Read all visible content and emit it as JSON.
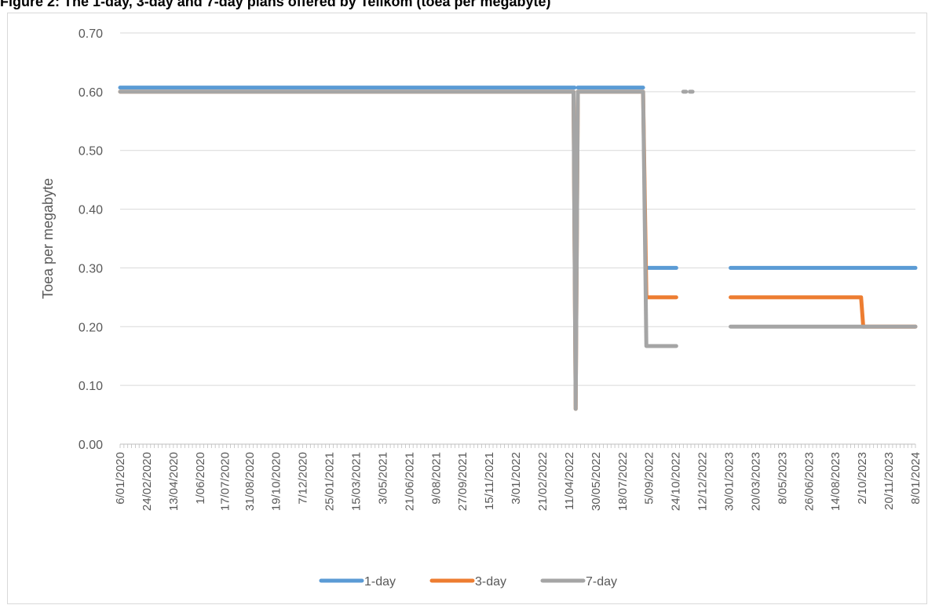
{
  "figure": {
    "title": "Figure 2: The 1-day, 3-day and 7-day plans offered by Telikom (toea per megabyte)"
  },
  "chart_data": {
    "type": "line",
    "title": "Figure 2: The 1-day, 3-day and 7-day plans offered by Telikom (toea per megabyte)",
    "xlabel": "",
    "ylabel": "Toea per megabyte",
    "ylim": [
      0,
      0.7
    ],
    "yticks": [
      "0.00",
      "0.10",
      "0.20",
      "0.30",
      "0.40",
      "0.50",
      "0.60",
      "0.70"
    ],
    "xlim": [
      "6/01/2020",
      "8/01/2024"
    ],
    "xticks": [
      "6/01/2020",
      "24/02/2020",
      "13/04/2020",
      "1/06/2020",
      "17/07/2020",
      "31/08/2020",
      "19/10/2020",
      "7/12/2020",
      "25/01/2021",
      "15/03/2021",
      "3/05/2021",
      "21/06/2021",
      "9/08/2021",
      "27/09/2021",
      "15/11/2021",
      "3/01/2022",
      "21/02/2022",
      "11/04/2022",
      "30/05/2022",
      "18/07/2022",
      "5/09/2022",
      "24/10/2022",
      "12/12/2022",
      "30/01/2023",
      "20/03/2023",
      "8/05/2023",
      "26/06/2023",
      "14/08/2023",
      "2/10/2023",
      "20/11/2023",
      "8/01/2024"
    ],
    "grid": true,
    "legend_position": "bottom",
    "series": [
      {
        "name": "1-day",
        "color": "#5b9bd5",
        "segments": [
          [
            [
              "6/01/2020",
              0.607
            ],
            [
              "21/04/2022",
              0.607
            ]
          ],
          [
            [
              "27/04/2022",
              0.607
            ],
            [
              "25/08/2022",
              0.607
            ]
          ],
          [
            [
              "31/08/2022",
              0.3
            ],
            [
              "25/10/2022",
              0.3
            ]
          ],
          [
            [
              "2/02/2023",
              0.3
            ],
            [
              "8/01/2024",
              0.3
            ]
          ]
        ]
      },
      {
        "name": "3-day",
        "color": "#ed7d31",
        "segments": [
          [
            [
              "6/01/2020",
              0.6
            ],
            [
              "19/04/2022",
              0.6
            ],
            [
              "23/04/2022",
              0.06
            ],
            [
              "27/04/2022",
              0.6
            ],
            [
              "25/08/2022",
              0.6
            ],
            [
              "31/08/2022",
              0.25
            ],
            [
              "25/10/2022",
              0.25
            ]
          ],
          [
            [
              "2/02/2023",
              0.25
            ],
            [
              "30/09/2023",
              0.25
            ],
            [
              "4/10/2023",
              0.2
            ],
            [
              "8/01/2024",
              0.2
            ]
          ]
        ]
      },
      {
        "name": "7-day",
        "color": "#a5a5a5",
        "segments": [
          [
            [
              "6/01/2020",
              0.6
            ],
            [
              "19/04/2022",
              0.6
            ],
            [
              "23/04/2022",
              0.06
            ],
            [
              "27/04/2022",
              0.6
            ],
            [
              "25/08/2022",
              0.6
            ],
            [
              "31/08/2022",
              0.167
            ],
            [
              "25/10/2022",
              0.167
            ]
          ],
          [
            [
              "7/11/2022",
              0.6
            ],
            [
              "12/11/2022",
              0.6
            ]
          ],
          [
            [
              "19/11/2022",
              0.6
            ],
            [
              "24/11/2022",
              0.6
            ]
          ],
          [
            [
              "2/02/2023",
              0.2
            ],
            [
              "8/01/2024",
              0.2
            ]
          ]
        ]
      }
    ]
  }
}
